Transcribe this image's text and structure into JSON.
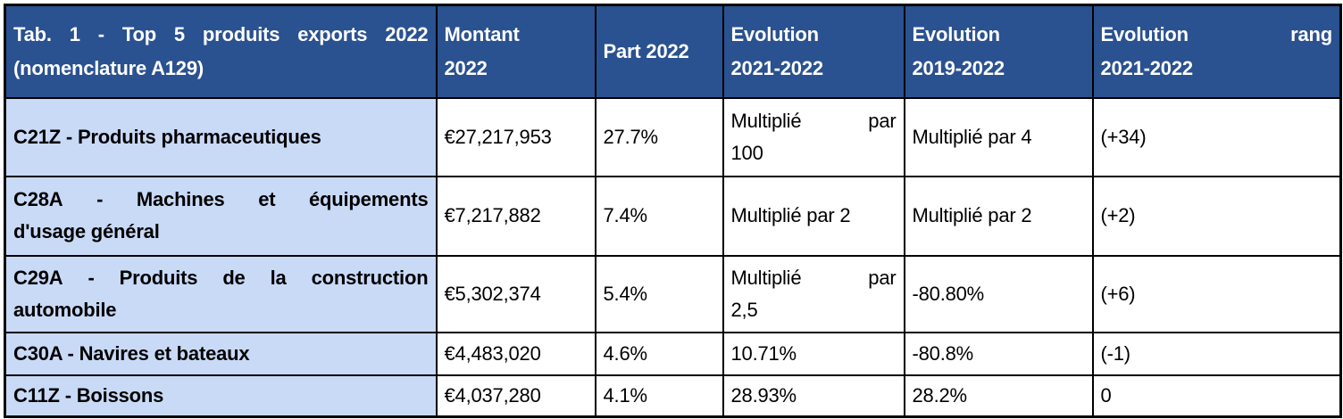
{
  "colors": {
    "header_bg": "#2A5190",
    "header_text": "#FFFFFF",
    "row_label_bg": "#C9DAF7",
    "body_text": "#000000",
    "border": "#000000",
    "page_bg": "#FFFFFF"
  },
  "table": {
    "header": [
      {
        "lines": [
          "Tab. 1 - Top 5 produits exports 2022",
          "(nomenclature A129)"
        ],
        "justify": true
      },
      {
        "lines": [
          "Montant",
          "2022"
        ],
        "justify": false
      },
      {
        "lines": [
          "Part 2022"
        ],
        "justify": false
      },
      {
        "lines": [
          "Evolution",
          "2021-2022"
        ],
        "justify": false
      },
      {
        "lines": [
          "Evolution",
          "2019-2022"
        ],
        "justify": false
      },
      {
        "lines": [
          "Evolution rang",
          "2021-2022"
        ],
        "justify": true
      }
    ],
    "rows": [
      {
        "cells": [
          {
            "lines": [
              "C21Z - Produits pharmaceutiques"
            ],
            "justify": false
          },
          {
            "lines": [
              "€27,217,953"
            ],
            "justify": false
          },
          {
            "lines": [
              "27.7%"
            ],
            "justify": false
          },
          {
            "lines": [
              "Multiplié par",
              "100"
            ],
            "justify": true
          },
          {
            "lines": [
              "Multiplié par 4"
            ],
            "justify": false
          },
          {
            "lines": [
              "(+34)"
            ],
            "justify": false
          }
        ]
      },
      {
        "cells": [
          {
            "lines": [
              "C28A - Machines et équipements",
              "d'usage général"
            ],
            "justify": true
          },
          {
            "lines": [
              "€7,217,882"
            ],
            "justify": false
          },
          {
            "lines": [
              "7.4%"
            ],
            "justify": false
          },
          {
            "lines": [
              "Multiplié par 2"
            ],
            "justify": false
          },
          {
            "lines": [
              "Multiplié par 2"
            ],
            "justify": false
          },
          {
            "lines": [
              "(+2)"
            ],
            "justify": false
          }
        ]
      },
      {
        "cells": [
          {
            "lines": [
              "C29A - Produits de la construction",
              "automobile"
            ],
            "justify": true
          },
          {
            "lines": [
              "€5,302,374"
            ],
            "justify": false
          },
          {
            "lines": [
              "5.4%"
            ],
            "justify": false
          },
          {
            "lines": [
              "Multiplié par",
              "2,5"
            ],
            "justify": true
          },
          {
            "lines": [
              "-80.80%"
            ],
            "justify": false
          },
          {
            "lines": [
              "(+6)"
            ],
            "justify": false
          }
        ]
      },
      {
        "cells": [
          {
            "lines": [
              "C30A - Navires et bateaux"
            ],
            "justify": false
          },
          {
            "lines": [
              "€4,483,020"
            ],
            "justify": false
          },
          {
            "lines": [
              "4.6%"
            ],
            "justify": false
          },
          {
            "lines": [
              "10.71%"
            ],
            "justify": false
          },
          {
            "lines": [
              "-80.8%"
            ],
            "justify": false
          },
          {
            "lines": [
              "(-1)"
            ],
            "justify": false
          }
        ]
      },
      {
        "cells": [
          {
            "lines": [
              "C11Z - Boissons"
            ],
            "justify": false
          },
          {
            "lines": [
              "€4,037,280"
            ],
            "justify": false
          },
          {
            "lines": [
              "4.1%"
            ],
            "justify": false
          },
          {
            "lines": [
              "28.93%"
            ],
            "justify": false
          },
          {
            "lines": [
              "28.2%"
            ],
            "justify": false
          },
          {
            "lines": [
              "0"
            ],
            "justify": false
          }
        ]
      }
    ]
  },
  "chart_data": {
    "type": "table",
    "title": "Tab. 1 - Top 5 produits exports 2022 (nomenclature A129)",
    "columns": [
      "Tab. 1 - Top 5 produits exports 2022 (nomenclature A129)",
      "Montant 2022",
      "Part 2022",
      "Evolution 2021-2022",
      "Evolution 2019-2022",
      "Evolution rang 2021-2022"
    ],
    "rows": [
      [
        "C21Z - Produits pharmaceutiques",
        "€27,217,953",
        "27.7%",
        "Multiplié par 100",
        "Multiplié par 4",
        "(+34)"
      ],
      [
        "C28A - Machines et équipements d'usage général",
        "€7,217,882",
        "7.4%",
        "Multiplié par 2",
        "Multiplié par 2",
        "(+2)"
      ],
      [
        "C29A - Produits de la construction automobile",
        "€5,302,374",
        "5.4%",
        "Multiplié par 2,5",
        "-80.80%",
        "(+6)"
      ],
      [
        "C30A - Navires et bateaux",
        "€4,483,020",
        "4.6%",
        "10.71%",
        "-80.8%",
        "(-1)"
      ],
      [
        "C11Z - Boissons",
        "€4,037,280",
        "4.1%",
        "28.93%",
        "28.2%",
        "0"
      ]
    ]
  }
}
